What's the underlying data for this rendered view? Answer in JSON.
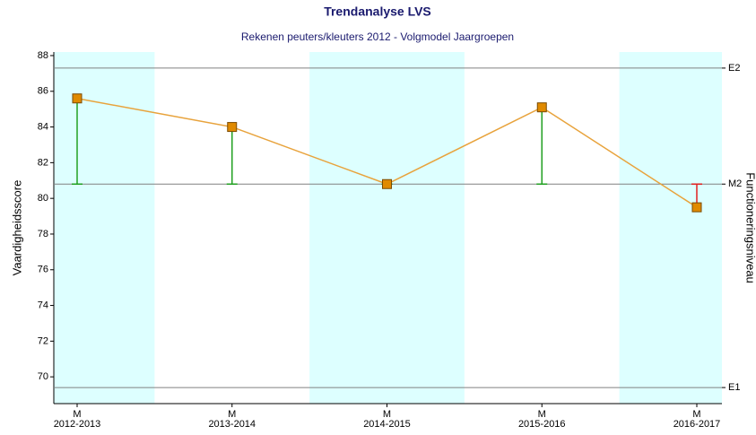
{
  "chart_data": {
    "type": "line",
    "title": "Trendanalyse LVS",
    "subtitle": "Rekenen peuters/kleuters 2012 - Volgmodel Jaargroepen",
    "ylabel": "Vaardigheidsscore",
    "y2label": "Functioneringsniveau",
    "categories": [
      [
        "M",
        "2012-2013"
      ],
      [
        "M",
        "2013-2014"
      ],
      [
        "M",
        "2014-2015"
      ],
      [
        "M",
        "2015-2016"
      ],
      [
        "M",
        "2016-2017"
      ]
    ],
    "series": [
      {
        "name": "Vaardigheidsscore",
        "color": "#e8a33c",
        "marker_color": "#e08a00",
        "values": [
          85.6,
          84.0,
          80.8,
          85.1,
          79.5
        ]
      }
    ],
    "reference_lines": [
      {
        "label": "E2",
        "value": 87.3
      },
      {
        "label": "M2",
        "value": 80.8
      },
      {
        "label": "E1",
        "value": 69.4
      }
    ],
    "deviation_reference": 1,
    "above_color": "#22a022",
    "below_color": "#e02020",
    "band_color": "#ddffff",
    "shade_alternate": true,
    "ylim": [
      68.5,
      88.2
    ],
    "yticks": [
      70,
      72,
      74,
      76,
      78,
      80,
      82,
      84,
      86,
      88
    ]
  }
}
